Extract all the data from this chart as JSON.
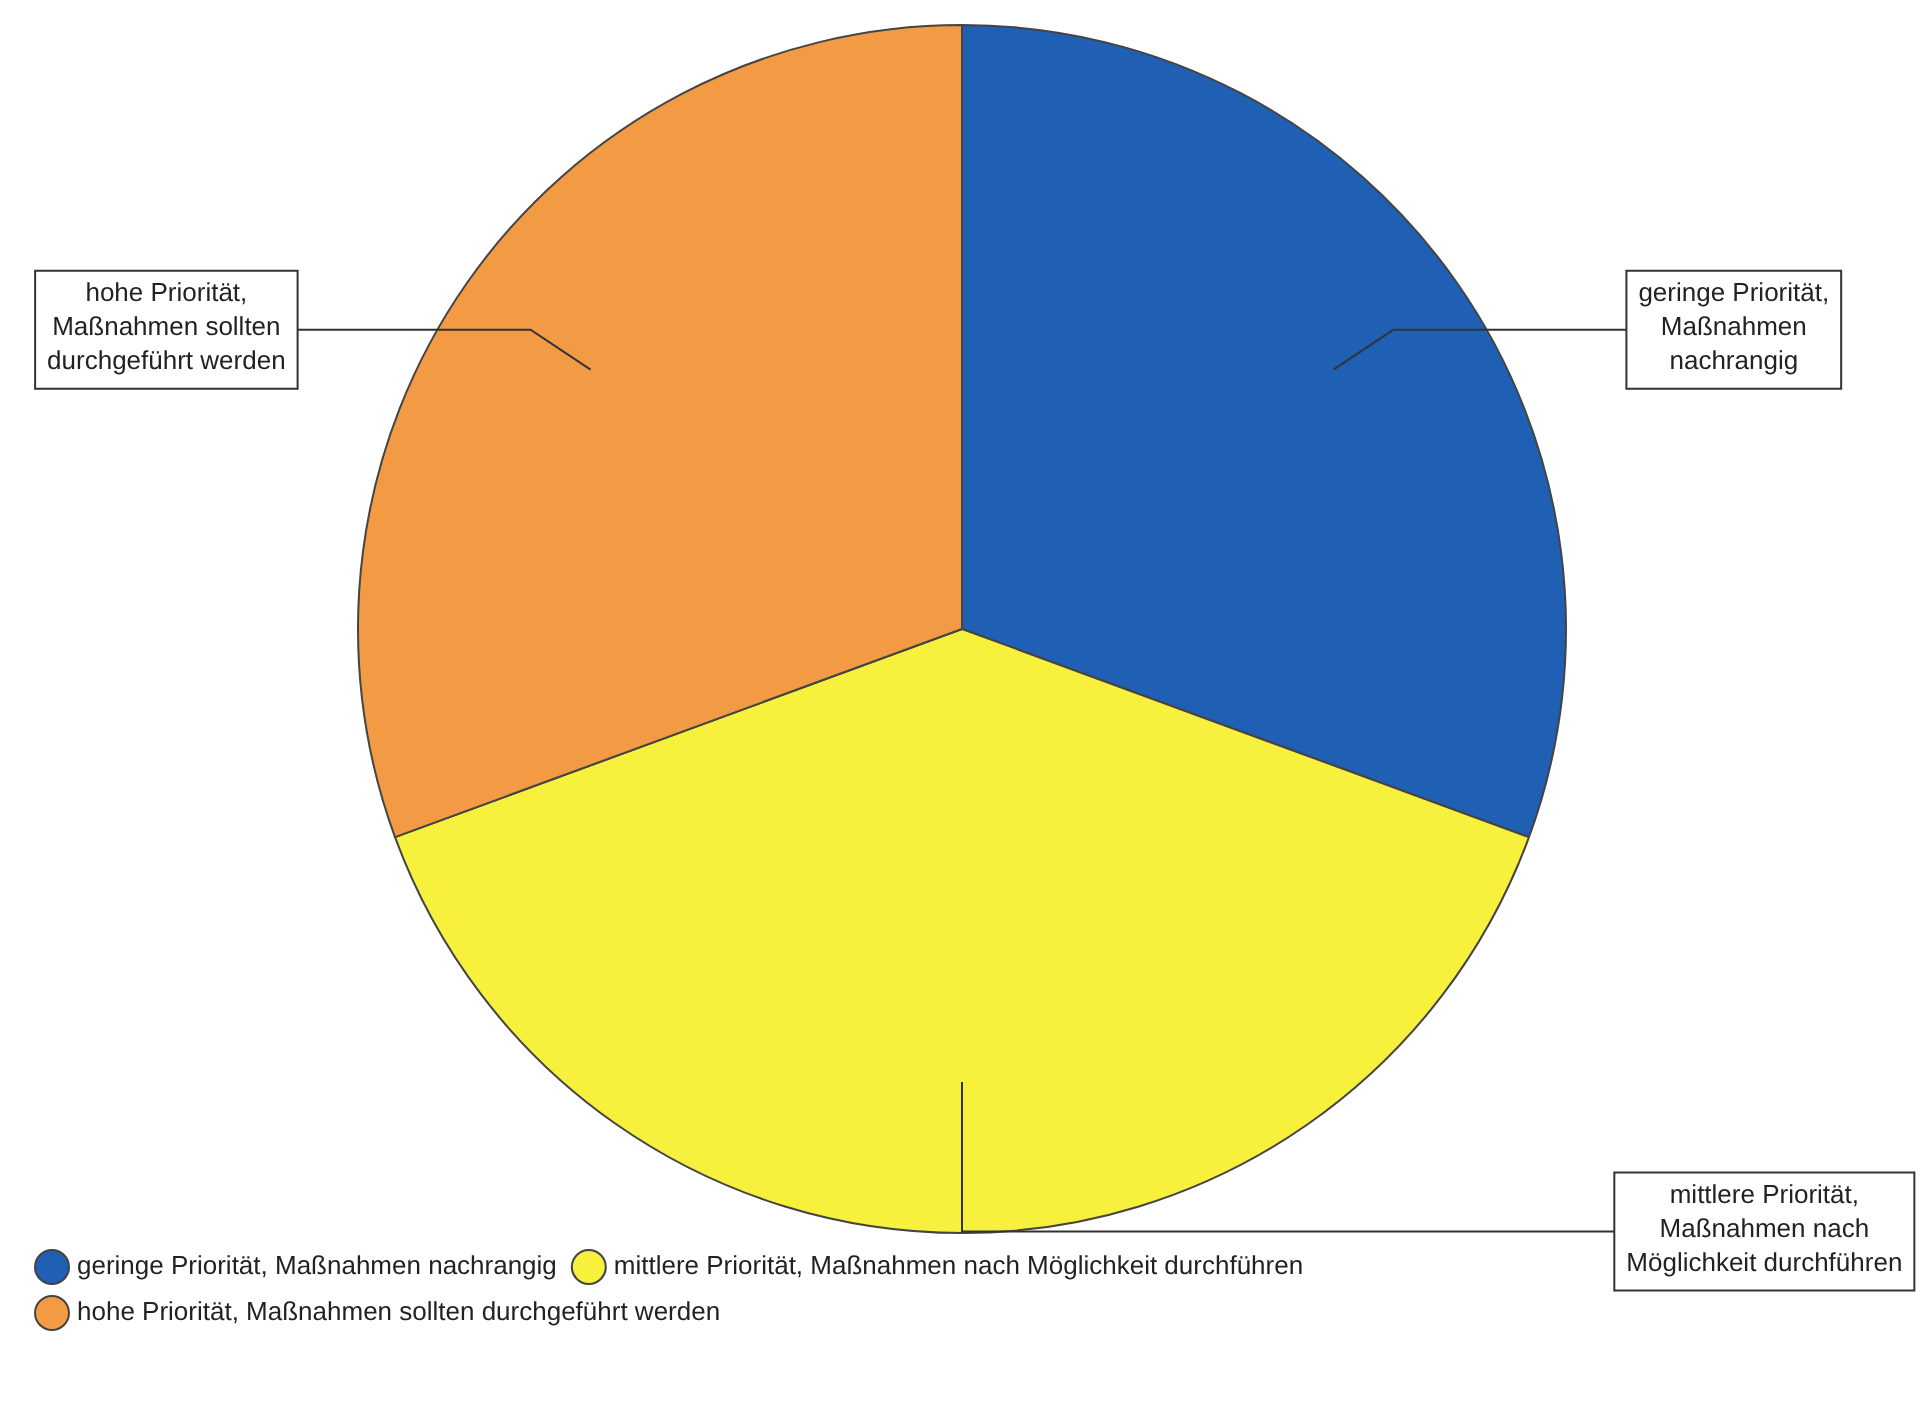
{
  "chart_data": {
    "type": "pie",
    "categories": [
      "geringe Priorität, Maßnahmen nachrangig",
      "mittlere Priorität, Maßnahmen nach Möglichkeit durchführen",
      "hohe Priorität, Maßnahmen sollten durchgeführt werden"
    ],
    "values": [
      30.6,
      38.8,
      30.6
    ],
    "colors": [
      "#1f5fb4",
      "#f7f03c",
      "#f39a45"
    ],
    "legend": "bottom"
  }
}
